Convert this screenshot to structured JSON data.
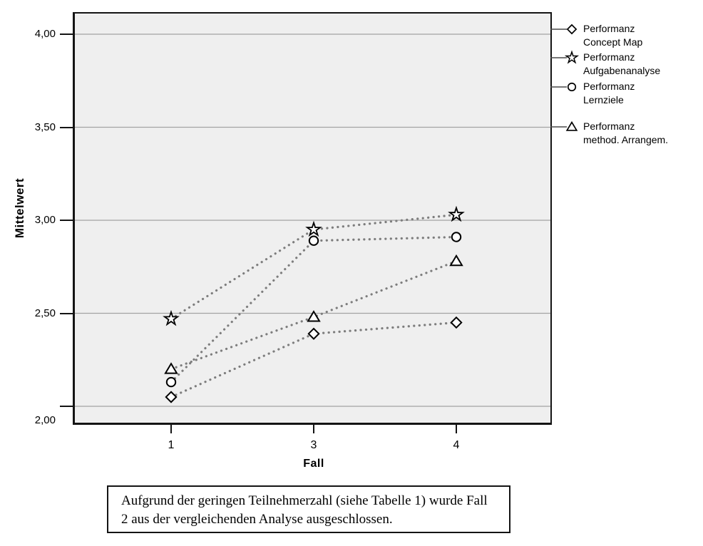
{
  "chart_data": {
    "type": "line",
    "title": "",
    "xlabel": "Fall",
    "ylabel": "Mittelwert",
    "categories": [
      "1",
      "3",
      "4"
    ],
    "y_ticks": [
      {
        "value": 4.0,
        "label": "4,00"
      },
      {
        "value": 3.5,
        "label": "3,50"
      },
      {
        "value": 3.0,
        "label": "3,00"
      },
      {
        "value": 2.5,
        "label": "2,50"
      },
      {
        "value": 2.0,
        "label": "2,00"
      }
    ],
    "ylim": [
      1.91,
      4.11
    ],
    "grid": "horizontal",
    "line_style": "dotted",
    "line_color": "#7d7d7d",
    "marker_color": "#000000",
    "marker_fill": "#ffffff",
    "plot_background": "#efefef",
    "gridline_color": "#a2a2a2",
    "legend_position": "right-outside",
    "series": [
      {
        "name": "Performanz Concept Map",
        "name_lines": [
          "Performanz",
          "Concept Map"
        ],
        "marker": "diamond",
        "values": [
          2.05,
          2.39,
          2.45
        ]
      },
      {
        "name": "Performanz Aufgabenanalyse",
        "name_lines": [
          "Performanz",
          "Aufgabenanalyse"
        ],
        "marker": "star",
        "values": [
          2.47,
          2.95,
          3.03
        ]
      },
      {
        "name": "Performanz Lernziele",
        "name_lines": [
          "Performanz",
          "Lernziele"
        ],
        "marker": "circle",
        "values": [
          2.13,
          2.89,
          2.91
        ]
      },
      {
        "name": "Performanz method. Arrangem.",
        "name_lines": [
          "Performanz",
          "method. Arrangem."
        ],
        "marker": "triangle",
        "values": [
          2.2,
          2.48,
          2.78
        ]
      }
    ]
  },
  "note": {
    "text": "Aufgrund der geringen Teilnehmerzahl (siehe Tabelle 1) wurde Fall 2 aus der vergleichenden Analyse ausgeschlossen."
  }
}
